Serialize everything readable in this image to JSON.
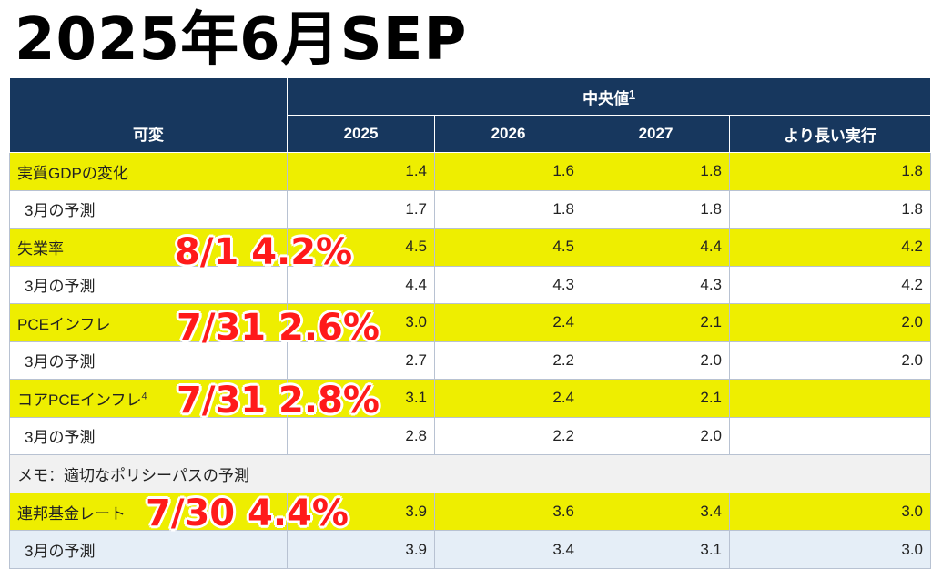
{
  "title": "2025年6月SEP",
  "table": {
    "header_group": "中央値",
    "header_group_sup": "1",
    "variable_header": "可変",
    "years": [
      "2025",
      "2026",
      "2027",
      "より長い実行"
    ],
    "rows": [
      {
        "label": "実質GDPの変化",
        "sup": "",
        "values": [
          "1.4",
          "1.6",
          "1.8",
          "1.8"
        ]
      },
      {
        "label": "3月の予測",
        "sup": "",
        "values": [
          "1.7",
          "1.8",
          "1.8",
          "1.8"
        ]
      },
      {
        "label": "失業率",
        "sup": "",
        "values": [
          "4.5",
          "4.5",
          "4.4",
          "4.2"
        ]
      },
      {
        "label": "3月の予測",
        "sup": "",
        "values": [
          "4.4",
          "4.3",
          "4.3",
          "4.2"
        ]
      },
      {
        "label": "PCEインフレ",
        "sup": "",
        "values": [
          "3.0",
          "2.4",
          "2.1",
          "2.0"
        ]
      },
      {
        "label": "3月の予測",
        "sup": "",
        "values": [
          "2.7",
          "2.2",
          "2.0",
          "2.0"
        ]
      },
      {
        "label": "コアPCEインフレ",
        "sup": "4",
        "values": [
          "3.1",
          "2.4",
          "2.1",
          ""
        ]
      },
      {
        "label": "3月の予測",
        "sup": "",
        "values": [
          "2.8",
          "2.2",
          "2.0",
          ""
        ]
      },
      {
        "label": "メモ：適切なポリシーパスの予測"
      },
      {
        "label": "連邦基金レート",
        "sup": "",
        "values": [
          "3.9",
          "3.6",
          "3.4",
          "3.0"
        ]
      },
      {
        "label": "3月の予測",
        "sup": "",
        "values": [
          "3.9",
          "3.4",
          "3.1",
          "3.0"
        ]
      }
    ]
  },
  "annotations": [
    "8/1 4.2%",
    "7/31 2.6%",
    "7/31 2.8%",
    "7/30 4.4%"
  ],
  "colors": {
    "header_bg": "#17375e",
    "highlight": "#eeee00",
    "annotation": "#ff1a1a"
  }
}
